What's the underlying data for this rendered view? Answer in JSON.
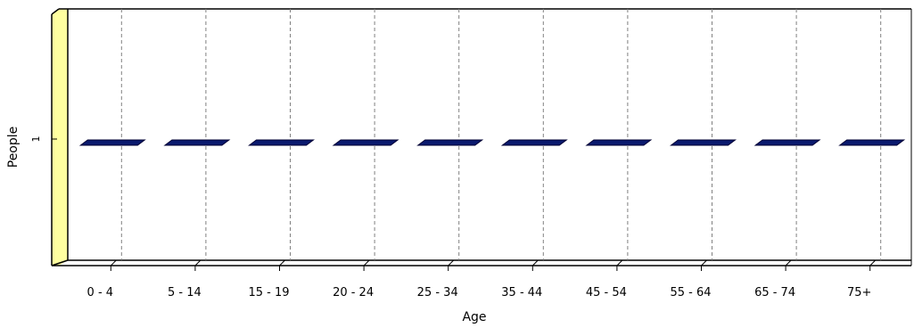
{
  "chart_data": {
    "type": "bar",
    "categories": [
      "0 - 4",
      "5 - 14",
      "15 - 19",
      "20 - 24",
      "25 - 34",
      "35 - 44",
      "45 - 54",
      "55 - 64",
      "65 - 74",
      "75+"
    ],
    "values": [
      1,
      1,
      1,
      1,
      1,
      1,
      1,
      1,
      1,
      1
    ],
    "xlabel": "Age",
    "ylabel": "People",
    "y_ticks": [
      "1"
    ],
    "ylim": [
      0,
      2
    ],
    "grid": "vertical-dashed",
    "style": "3d"
  },
  "colors": {
    "bar": "#0a1a6e",
    "bar_edge": "#000033",
    "wall": "#ffffa0",
    "grid": "#808080"
  }
}
